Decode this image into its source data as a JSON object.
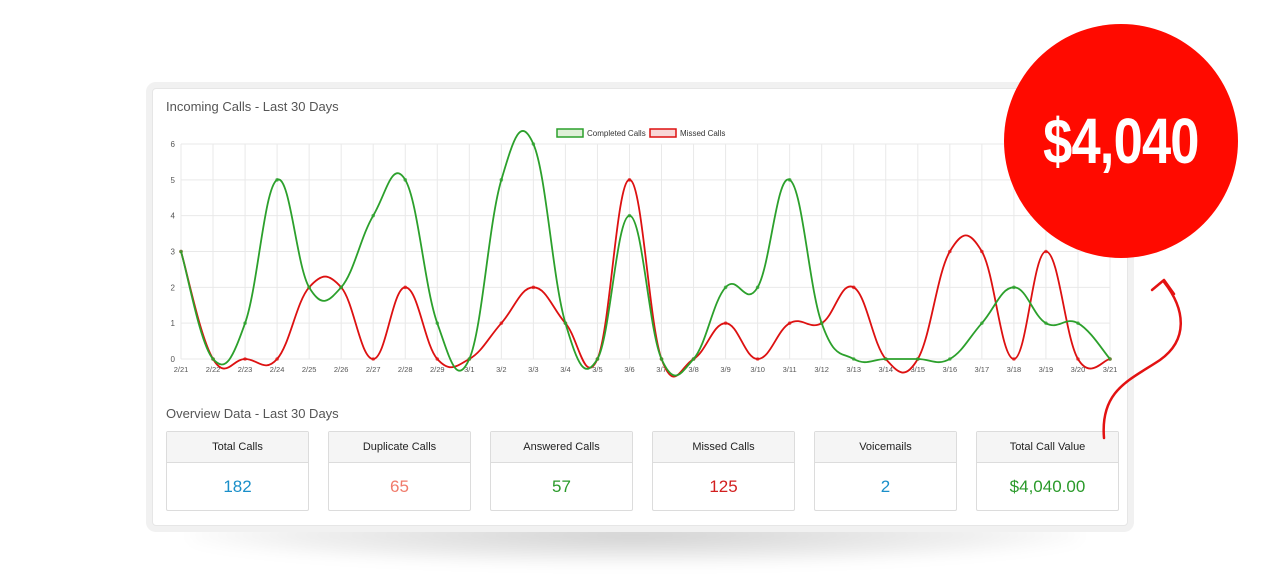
{
  "chart_section_title": "Incoming Calls - Last 30 Days",
  "overview_title": "Overview Data - Last 30 Days",
  "badge_value": "$4,040",
  "colors": {
    "completed": "#2ca02c",
    "missed": "#dd1111",
    "badge": "#ff0a00",
    "blue": "#1a8fc9",
    "salmon": "#f07b6b",
    "green": "#2a9a2a",
    "red": "#d21f1f"
  },
  "chart_data": {
    "type": "line",
    "title": "",
    "xlabel": "",
    "ylabel": "",
    "ylim": [
      0,
      6
    ],
    "yticks": [
      0,
      1,
      2,
      3,
      4,
      5,
      6
    ],
    "grid": true,
    "legend_position": "top-center",
    "x": [
      "2/21",
      "2/22",
      "2/23",
      "2/24",
      "2/25",
      "2/26",
      "2/27",
      "2/28",
      "2/29",
      "3/1",
      "3/2",
      "3/3",
      "3/4",
      "3/5",
      "3/6",
      "3/7",
      "3/8",
      "3/9",
      "3/10",
      "3/11",
      "3/12",
      "3/13",
      "3/14",
      "3/15",
      "3/16",
      "3/17",
      "3/18",
      "3/19",
      "3/20",
      "3/21"
    ],
    "series": [
      {
        "name": "Completed Calls",
        "values": [
          3,
          0,
          1,
          5,
          2,
          2,
          4,
          5,
          1,
          0,
          5,
          6,
          1,
          0,
          4,
          0,
          0,
          2,
          2,
          5,
          1,
          0,
          0,
          0,
          0,
          1,
          2,
          1,
          1,
          0
        ]
      },
      {
        "name": "Missed Calls",
        "values": [
          3,
          0,
          0,
          0,
          2,
          2,
          0,
          2,
          0,
          0,
          1,
          2,
          1,
          0,
          5,
          0,
          0,
          1,
          0,
          1,
          1,
          2,
          0,
          0,
          3,
          3,
          0,
          3,
          0,
          0
        ]
      }
    ]
  },
  "stats": [
    {
      "label": "Total Calls",
      "value": "182",
      "color": "#1a8fc9"
    },
    {
      "label": "Duplicate Calls",
      "value": "65",
      "color": "#f07b6b"
    },
    {
      "label": "Answered Calls",
      "value": "57",
      "color": "#2a9a2a"
    },
    {
      "label": "Missed Calls",
      "value": "125",
      "color": "#d21f1f"
    },
    {
      "label": "Voicemails",
      "value": "2",
      "color": "#1a8fc9"
    },
    {
      "label": "Total Call Value",
      "value": "$4,040.00",
      "color": "#2a9a2a"
    }
  ]
}
